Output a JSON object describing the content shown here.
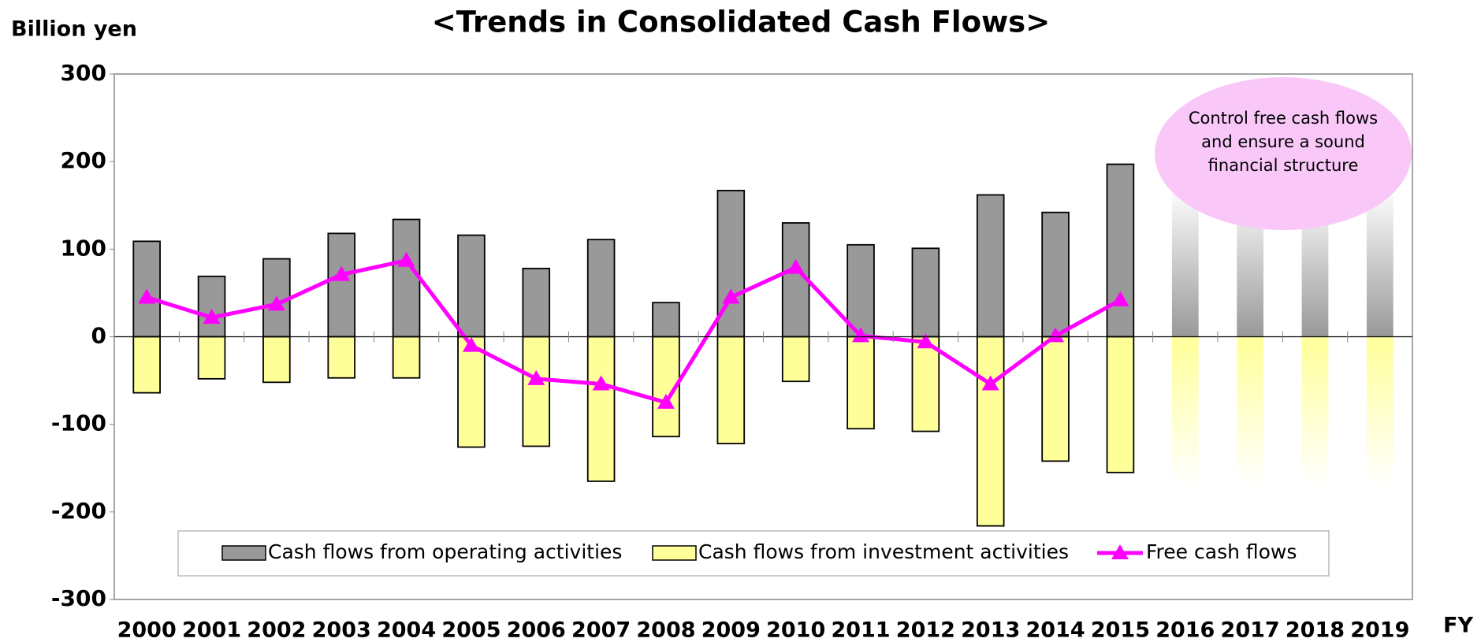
{
  "chart_data": {
    "type": "bar_line",
    "title": "<Trends in Consolidated Cash Flows>",
    "y_axis_label": "Billion yen",
    "x_axis_label": "FY",
    "annotation": "Control free cash flows and ensure a sound financial structure",
    "categories": [
      "2000",
      "2001",
      "2002",
      "2003",
      "2004",
      "2005",
      "2006",
      "2007",
      "2008",
      "2009",
      "2010",
      "2011",
      "2012",
      "2013",
      "2014",
      "2015",
      "2016",
      "2017",
      "2018",
      "2019"
    ],
    "series": [
      {
        "name": "Cash flows from operating activities",
        "type": "bar",
        "color": "#999999",
        "values": [
          109,
          69,
          89,
          118,
          134,
          116,
          78,
          111,
          39,
          167,
          130,
          105,
          101,
          162,
          142,
          197,
          null,
          null,
          null,
          null
        ]
      },
      {
        "name": "Cash flows from investment activities",
        "type": "bar",
        "color": "#ffff99",
        "values": [
          -64,
          -48,
          -52,
          -47,
          -47,
          -126,
          -125,
          -165,
          -114,
          -122,
          -51,
          -105,
          -108,
          -216,
          -142,
          -155,
          null,
          null,
          null,
          null
        ]
      },
      {
        "name": "Free cash flows",
        "type": "line",
        "color": "#ff00ff",
        "values": [
          45,
          22,
          37,
          71,
          87,
          -10,
          -48,
          -54,
          -75,
          45,
          79,
          1,
          -6,
          -54,
          1,
          42,
          null,
          null,
          null,
          null
        ]
      }
    ],
    "ylim": [
      -300,
      300
    ],
    "yticks": [
      -300,
      -200,
      -100,
      0,
      100,
      200,
      300
    ],
    "legend": "bottom"
  }
}
